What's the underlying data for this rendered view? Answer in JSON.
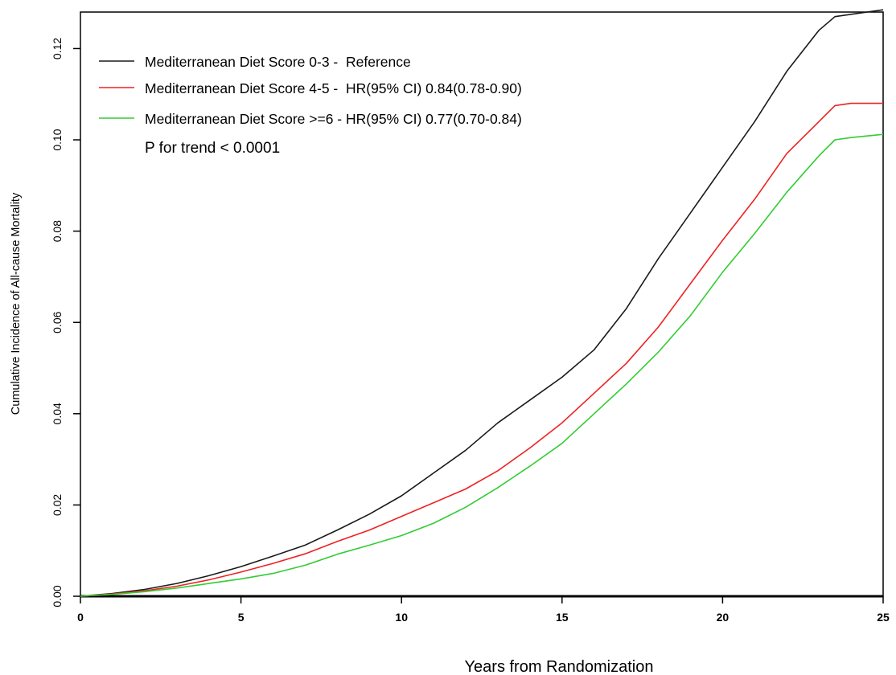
{
  "chart_data": {
    "type": "line",
    "title": "",
    "xlabel": "Years from Randomization",
    "ylabel": "Cumulative Incidence of All-cause Mortality",
    "xlim": [
      0,
      25
    ],
    "ylim": [
      0,
      0.128
    ],
    "xticks": [
      "0",
      "5",
      "10",
      "15",
      "20",
      "25"
    ],
    "yticks": [
      "0.00",
      "0.02",
      "0.04",
      "0.06",
      "0.08",
      "0.10",
      "0.12"
    ],
    "grid": false,
    "legend_position": "top-left",
    "annotation": "P for trend < 0.0001",
    "x": [
      0,
      1,
      2,
      3,
      4,
      5,
      6,
      7,
      8,
      9,
      10,
      11,
      12,
      13,
      14,
      15,
      16,
      17,
      18,
      19,
      20,
      21,
      22,
      23,
      23.5,
      24,
      25
    ],
    "series": [
      {
        "name": "Mediterranean Diet Score 0-3 -  Reference",
        "color": "#1a1a1a",
        "values": [
          0,
          0.0006,
          0.0015,
          0.0028,
          0.0045,
          0.0065,
          0.0088,
          0.0112,
          0.0145,
          0.018,
          0.022,
          0.027,
          0.032,
          0.038,
          0.043,
          0.048,
          0.054,
          0.063,
          0.074,
          0.084,
          0.094,
          0.104,
          0.115,
          0.124,
          0.127,
          0.1275,
          0.1285
        ]
      },
      {
        "name": "Mediterranean Diet Score 4-5 -  HR(95% CI) 0.84(0.78-0.90)",
        "color": "#ee2222",
        "values": [
          0,
          0.0005,
          0.0012,
          0.0022,
          0.0036,
          0.0053,
          0.0072,
          0.0093,
          0.012,
          0.0145,
          0.0175,
          0.0205,
          0.0235,
          0.0275,
          0.0325,
          0.038,
          0.0445,
          0.051,
          0.059,
          0.0685,
          0.078,
          0.087,
          0.097,
          0.104,
          0.1075,
          0.108,
          0.108
        ]
      },
      {
        "name": "Mediterranean Diet Score >=6 - HR(95% CI) 0.77(0.70-0.84)",
        "color": "#33cc33",
        "values": [
          0,
          0.0004,
          0.001,
          0.0018,
          0.0028,
          0.0038,
          0.005,
          0.0068,
          0.0092,
          0.0112,
          0.0133,
          0.016,
          0.0195,
          0.0238,
          0.0285,
          0.0335,
          0.04,
          0.0465,
          0.0535,
          0.0615,
          0.071,
          0.0795,
          0.0885,
          0.0965,
          0.1,
          0.1005,
          0.1012
        ]
      }
    ]
  }
}
